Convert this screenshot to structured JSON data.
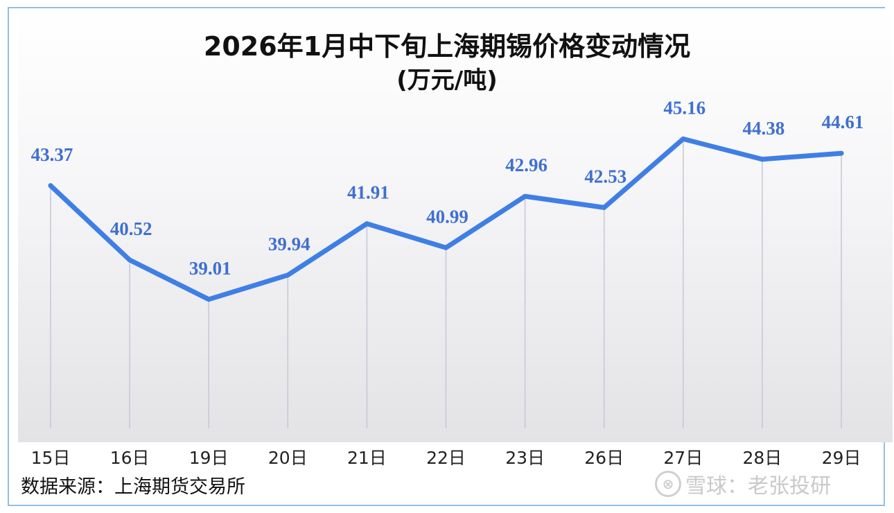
{
  "chart_data": {
    "type": "line",
    "title": "2026年1月中下旬上海期锡价格变动情况",
    "subtitle": "(万元/吨)",
    "categories": [
      "15日",
      "16日",
      "19日",
      "20日",
      "21日",
      "22日",
      "23日",
      "26日",
      "27日",
      "28日",
      "29日"
    ],
    "series": [
      {
        "values": [
          43.37,
          40.52,
          39.01,
          39.94,
          41.91,
          40.99,
          42.96,
          42.53,
          45.16,
          44.38,
          44.61
        ]
      }
    ],
    "data_labels": [
      "43.37",
      "40.52",
      "39.01",
      "39.94",
      "41.91",
      "40.99",
      "42.96",
      "42.53",
      "45.16",
      "44.38",
      "44.61"
    ],
    "ylim": [
      30.5,
      46.5
    ],
    "grid": false,
    "legend": "none",
    "drop_lines": true,
    "colors": {
      "line": "#3f7fe5",
      "label": "#3f6fd2",
      "drop_line": "#c4c8d4",
      "border": "#8fbfe6"
    }
  },
  "footer": {
    "source": "数据来源：上海期货交易所",
    "watermark_logo": "⊗",
    "watermark_text": "雪球：老张投研"
  }
}
